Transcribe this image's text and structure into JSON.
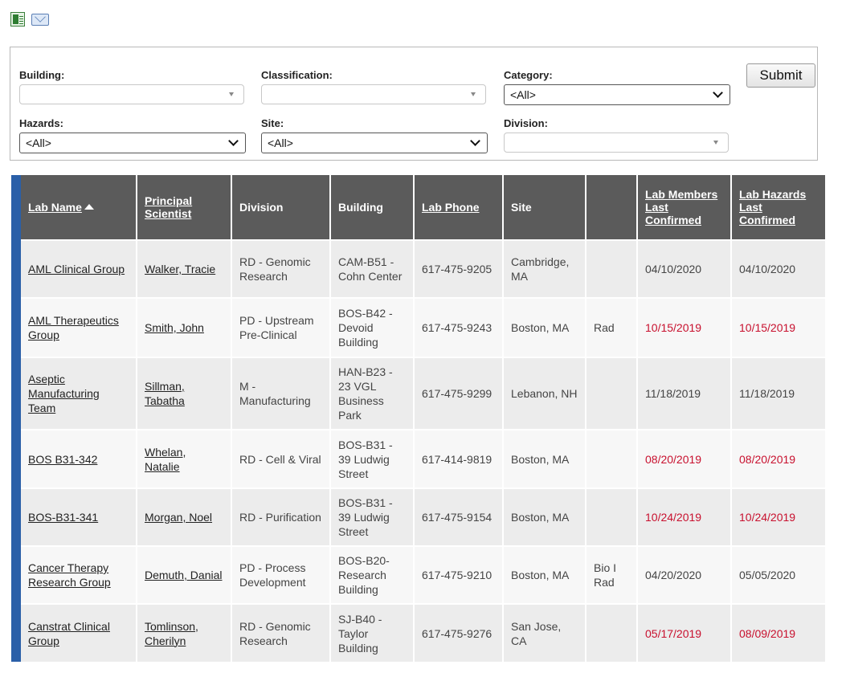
{
  "toolbar": {
    "excel_icon": "excel-export-icon",
    "email_icon": "email-icon"
  },
  "filters": {
    "building": {
      "label": "Building:",
      "value": ""
    },
    "classification": {
      "label": "Classification:",
      "value": ""
    },
    "category": {
      "label": "Category:",
      "value": "<All>"
    },
    "hazards": {
      "label": "Hazards:",
      "value": "<All>"
    },
    "site": {
      "label": "Site:",
      "value": "<All>"
    },
    "division": {
      "label": "Division:",
      "value": ""
    },
    "submit_label": "Submit"
  },
  "colors": {
    "header_bg": "#5b5b5b",
    "accent_bar": "#2a5fa8",
    "overdue": "#c8102e"
  },
  "table": {
    "headers": {
      "lab_name": "Lab Name",
      "principal_scientist": "Principal Scientist",
      "division": "Division",
      "building": "Building",
      "lab_phone": "Lab Phone",
      "site": "Site",
      "hazards": "",
      "members_confirmed": "Lab Members Last Confirmed",
      "hazards_confirmed": "Lab Hazards Last Confirmed"
    },
    "rows": [
      {
        "lab_name": "AML Clinical Group",
        "pi": "Walker, Tracie",
        "division": "RD - Genomic Research",
        "building": "CAM-B51 - Cohn Center",
        "phone": "617-475-9205",
        "site": "Cambridge, MA",
        "hazards": "",
        "members_confirmed": "04/10/2020",
        "hazards_confirmed": "04/10/2020",
        "members_overdue": false,
        "hazards_overdue": false
      },
      {
        "lab_name": "AML Therapeutics Group",
        "pi": "Smith, John",
        "division": "PD - Upstream Pre-Clinical",
        "building": "BOS-B42 - Devoid Building",
        "phone": "617-475-9243",
        "site": "Boston, MA",
        "hazards": "Rad",
        "members_confirmed": "10/15/2019",
        "hazards_confirmed": "10/15/2019",
        "members_overdue": true,
        "hazards_overdue": true
      },
      {
        "lab_name": "Aseptic Manufacturing Team",
        "pi": "Sillman, Tabatha",
        "division": "M - Manufacturing",
        "building": "HAN-B23 - 23 VGL Business Park",
        "phone": "617-475-9299",
        "site": "Lebanon, NH",
        "hazards": "",
        "members_confirmed": "11/18/2019",
        "hazards_confirmed": "11/18/2019",
        "members_overdue": false,
        "hazards_overdue": false
      },
      {
        "lab_name": "BOS B31-342",
        "pi": "Whelan, Natalie",
        "division": "RD - Cell & Viral",
        "building": "BOS-B31 - 39 Ludwig Street",
        "phone": "617-414-9819",
        "site": "Boston, MA",
        "hazards": "",
        "members_confirmed": "08/20/2019",
        "hazards_confirmed": "08/20/2019",
        "members_overdue": true,
        "hazards_overdue": true
      },
      {
        "lab_name": "BOS-B31-341",
        "pi": "Morgan, Noel",
        "division": "RD - Purification",
        "building": "BOS-B31 - 39 Ludwig Street",
        "phone": "617-475-9154",
        "site": "Boston, MA",
        "hazards": "",
        "members_confirmed": "10/24/2019",
        "hazards_confirmed": "10/24/2019",
        "members_overdue": true,
        "hazards_overdue": true
      },
      {
        "lab_name": "Cancer Therapy Research Group",
        "pi": "Demuth, Danial",
        "division": "PD - Process Development",
        "building": "BOS-B20- Research Building",
        "phone": "617-475-9210",
        "site": "Boston, MA",
        "hazards": "Bio I Rad",
        "members_confirmed": "04/20/2020",
        "hazards_confirmed": "05/05/2020",
        "members_overdue": false,
        "hazards_overdue": false
      },
      {
        "lab_name": "Canstrat Clinical Group",
        "pi": "Tomlinson, Cherilyn",
        "division": "RD - Genomic Research",
        "building": "SJ-B40 - Taylor Building",
        "phone": "617-475-9276",
        "site": "San Jose, CA",
        "hazards": "",
        "members_confirmed": "05/17/2019",
        "hazards_confirmed": "08/09/2019",
        "members_overdue": true,
        "hazards_overdue": true
      }
    ]
  }
}
